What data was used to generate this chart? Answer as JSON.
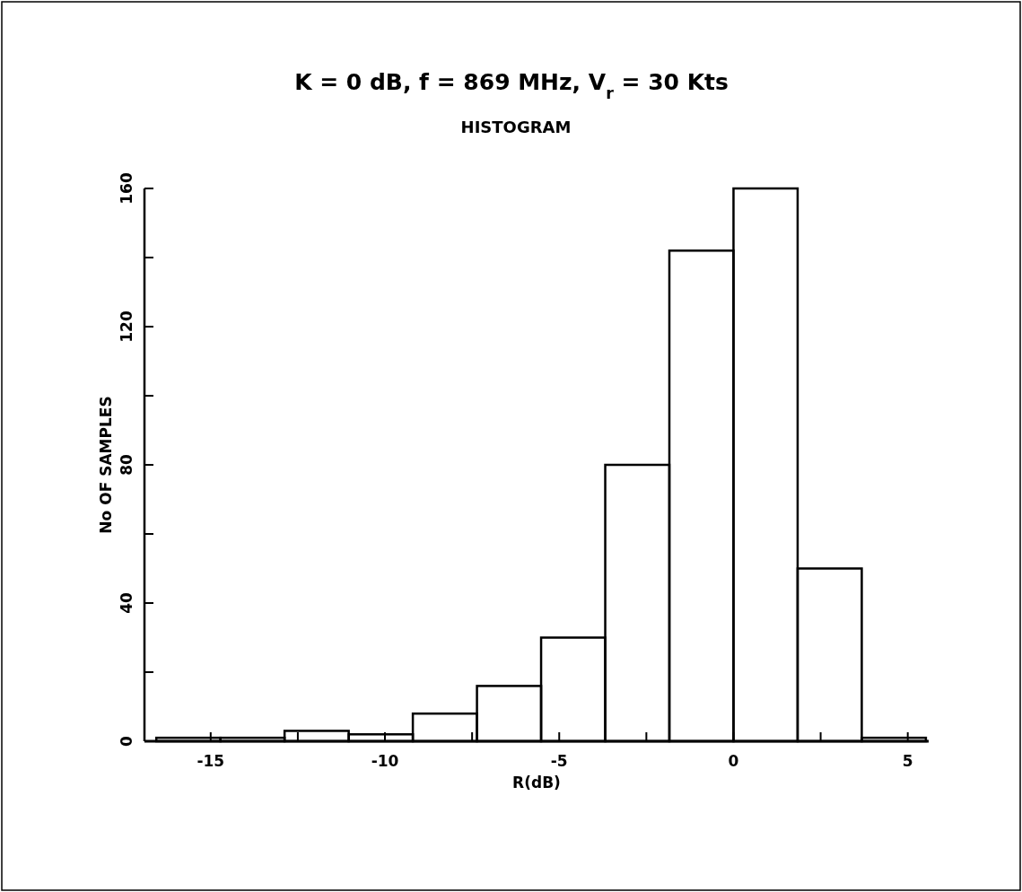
{
  "chart_data": {
    "type": "histogram",
    "title": "K = 0 dB, f = 869 MHz, V$_{r}$ = 30 Kts",
    "subtitle": "HISTOGRAM",
    "xlabel": "R(dB)",
    "ylabel": "No OF SAMPLES",
    "bins": [
      -16.56,
      -14.72,
      -12.88,
      -11.04,
      -9.2,
      -7.36,
      -5.52,
      -3.68,
      -1.84,
      0,
      1.84,
      3.68,
      5.52
    ],
    "values": [
      1,
      1,
      3,
      2,
      8,
      16,
      30,
      80,
      142,
      160,
      50,
      1
    ],
    "color": "#000000",
    "xlim": [
      -16.9,
      5.6
    ],
    "ylim": [
      0,
      160
    ],
    "xticks": [
      -15,
      {
        "value": -12.5,
        "label": null
      },
      -10,
      {
        "value": -7.5,
        "label": null
      },
      -5,
      {
        "value": -2.5,
        "label": null
      },
      0,
      {
        "value": 2.5,
        "label": null
      },
      5
    ],
    "yticks": [
      0,
      {
        "value": 20,
        "label": null
      },
      40,
      {
        "value": 60,
        "label": null
      },
      80,
      {
        "value": 100,
        "label": null
      },
      120,
      {
        "value": 140,
        "label": null
      },
      160
    ],
    "grid": false
  }
}
